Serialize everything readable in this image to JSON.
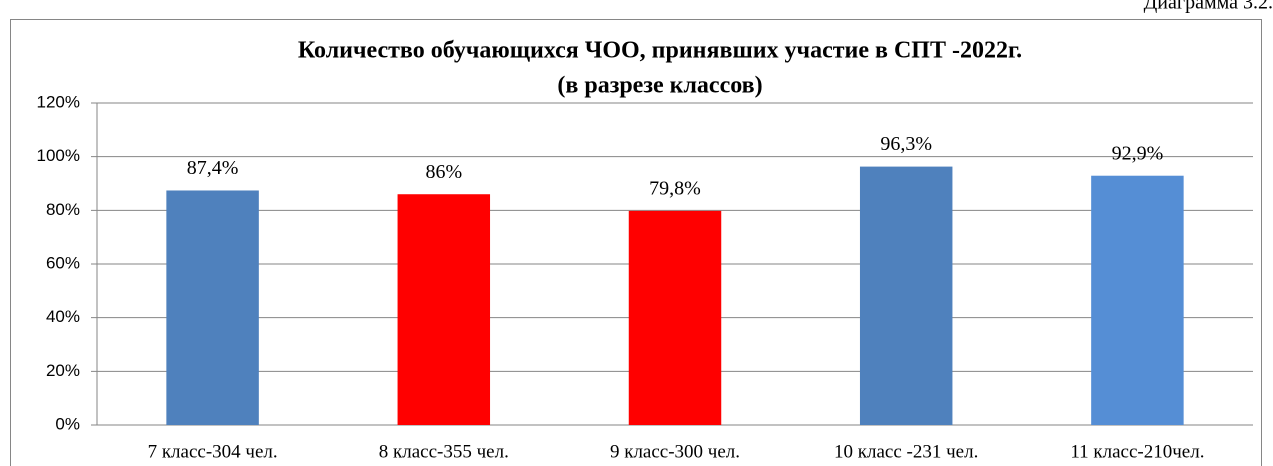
{
  "chart_data": {
    "type": "bar",
    "caption": "Диаграмма 3.2.",
    "title": "Количество обучающихся ЧОО, принявших участие в СПТ -2022г.",
    "subtitle": "(в разрезе классов)",
    "categories": [
      "7 класс-304 чел.",
      "8 класс-355 чел.",
      "9 класс-300 чел.",
      "10 класс -231 чел.",
      "11 класс-210чел."
    ],
    "values": [
      87.4,
      86,
      79.8,
      96.3,
      92.9
    ],
    "value_labels": [
      "87,4%",
      "86%",
      "79,8%",
      "96,3%",
      "92,9%"
    ],
    "colors": [
      "#4f81bd",
      "#ff0000",
      "#ff0000",
      "#4f81bd",
      "#558ed5"
    ],
    "ylim": [
      0,
      120
    ],
    "yticks": [
      {
        "value": 0,
        "label": "0%"
      },
      {
        "value": 20,
        "label": "20%"
      },
      {
        "value": 40,
        "label": "40%"
      },
      {
        "value": 60,
        "label": "60%"
      },
      {
        "value": 80,
        "label": "80%"
      },
      {
        "value": 100,
        "label": "100%"
      },
      {
        "value": 120,
        "label": "120%"
      }
    ],
    "grid": true
  }
}
